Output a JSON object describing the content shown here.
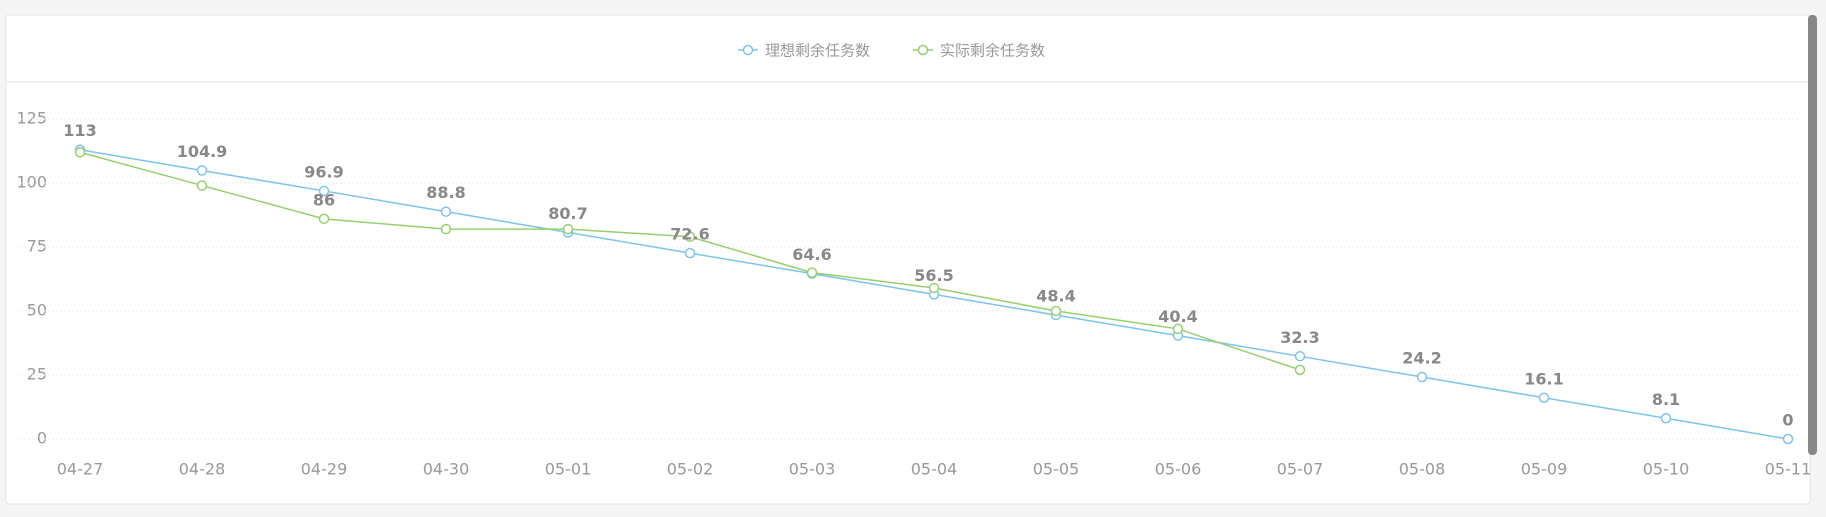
{
  "chart_data": {
    "type": "line",
    "categories": [
      "04-27",
      "04-28",
      "04-29",
      "04-30",
      "05-01",
      "05-02",
      "05-03",
      "05-04",
      "05-05",
      "05-06",
      "05-07",
      "05-08",
      "05-09",
      "05-10",
      "05-11"
    ],
    "series": [
      {
        "name": "理想剩余任务数",
        "color": "#7ec3ee",
        "values": [
          113,
          104.9,
          96.9,
          88.8,
          80.7,
          72.6,
          64.6,
          56.5,
          48.4,
          40.4,
          32.3,
          24.2,
          16.1,
          8.1,
          0
        ]
      },
      {
        "name": "实际剩余任务数",
        "color": "#95d06f",
        "values": [
          112,
          99,
          86,
          82,
          82,
          79,
          65,
          59,
          50,
          43,
          27,
          null,
          null,
          null,
          null
        ]
      }
    ],
    "ylim": [
      0,
      125
    ],
    "yticks": [
      0,
      25,
      50,
      75,
      100,
      125
    ],
    "grid": true,
    "legend": "top"
  }
}
